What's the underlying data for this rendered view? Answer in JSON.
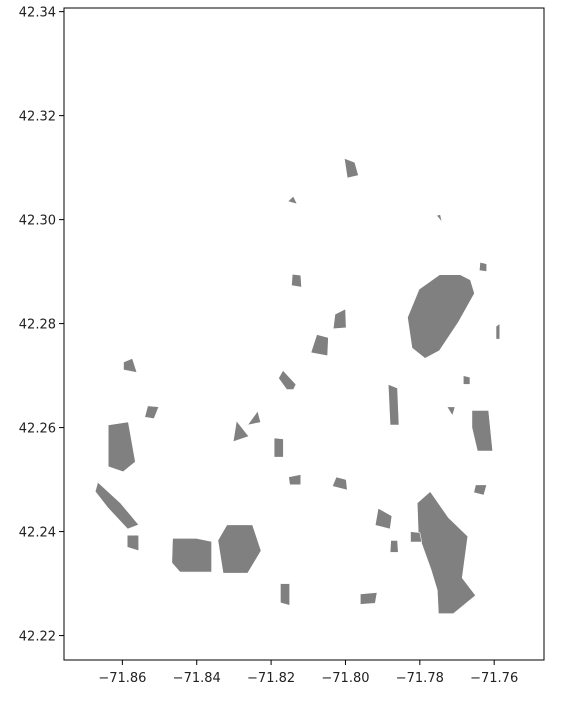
{
  "chart_data": {
    "type": "map",
    "title": "",
    "xlabel": "",
    "ylabel": "",
    "xlim": [
      -71.8757,
      -71.7466
    ],
    "ylim": [
      42.2153,
      42.3407
    ],
    "x_ticks": [
      {
        "value": -71.86,
        "label": "−71.86"
      },
      {
        "value": -71.84,
        "label": "−71.84"
      },
      {
        "value": -71.82,
        "label": "−71.82"
      },
      {
        "value": -71.8,
        "label": "−71.80"
      },
      {
        "value": -71.78,
        "label": "−71.78"
      },
      {
        "value": -71.76,
        "label": "−71.76"
      }
    ],
    "y_ticks": [
      {
        "value": 42.34,
        "label": "42.34"
      },
      {
        "value": 42.32,
        "label": "42.32"
      },
      {
        "value": 42.3,
        "label": "42.30"
      },
      {
        "value": 42.28,
        "label": "42.28"
      },
      {
        "value": 42.26,
        "label": "42.26"
      },
      {
        "value": 42.24,
        "label": "42.24"
      },
      {
        "value": 42.22,
        "label": "42.22"
      }
    ],
    "grid": false,
    "fill_color": "#808080",
    "edge_color": "#ffffff",
    "polygons": [
      [
        [
          -71.7802,
          42.2866
        ],
        [
          -71.7747,
          42.2894
        ],
        [
          -71.7691,
          42.2894
        ],
        [
          -71.7664,
          42.2884
        ],
        [
          -71.7653,
          42.2858
        ],
        [
          -71.7696,
          42.2803
        ],
        [
          -71.7747,
          42.2748
        ],
        [
          -71.7786,
          42.2733
        ],
        [
          -71.7821,
          42.2753
        ],
        [
          -71.7833,
          42.2812
        ]
      ],
      [
        [
          -71.7772,
          42.2477
        ],
        [
          -71.7723,
          42.2427
        ],
        [
          -71.7671,
          42.2391
        ],
        [
          -71.7686,
          42.2311
        ],
        [
          -71.765,
          42.2277
        ],
        [
          -71.771,
          42.2242
        ],
        [
          -71.775,
          42.2242
        ],
        [
          -71.7753,
          42.2287
        ],
        [
          -71.777,
          42.2327
        ],
        [
          -71.7804,
          42.2395
        ],
        [
          -71.7807,
          42.2455
        ]
      ],
      [
        [
          -71.8319,
          42.2413
        ],
        [
          -71.825,
          42.2413
        ],
        [
          -71.8227,
          42.2363
        ],
        [
          -71.8263,
          42.232
        ],
        [
          -71.8329,
          42.232
        ],
        [
          -71.8343,
          42.2383
        ]
      ],
      [
        [
          -71.8465,
          42.2387
        ],
        [
          -71.8401,
          42.2387
        ],
        [
          -71.836,
          42.2381
        ],
        [
          -71.836,
          42.2322
        ],
        [
          -71.8445,
          42.2322
        ],
        [
          -71.8467,
          42.234
        ]
      ],
      [
        [
          -71.8638,
          42.2605
        ],
        [
          -71.8584,
          42.2611
        ],
        [
          -71.8565,
          42.2534
        ],
        [
          -71.8598,
          42.2515
        ],
        [
          -71.8638,
          42.2525
        ]
      ],
      [
        [
          -71.8666,
          42.2495
        ],
        [
          -71.8605,
          42.2455
        ],
        [
          -71.8556,
          42.2413
        ],
        [
          -71.8586,
          42.2405
        ],
        [
          -71.8638,
          42.2445
        ],
        [
          -71.8673,
          42.2477
        ]
      ],
      [
        [
          -71.766,
          42.2633
        ],
        [
          -71.7615,
          42.2633
        ],
        [
          -71.7604,
          42.2555
        ],
        [
          -71.7645,
          42.2555
        ],
        [
          -71.766,
          42.26
        ]
      ],
      [
        [
          -71.8028,
          42.2818
        ],
        [
          -71.8,
          42.2828
        ],
        [
          -71.7998,
          42.2792
        ],
        [
          -71.8033,
          42.279
        ]
      ],
      [
        [
          -71.8077,
          42.2779
        ],
        [
          -71.8046,
          42.2773
        ],
        [
          -71.8048,
          42.2738
        ],
        [
          -71.8093,
          42.2744
        ]
      ],
      [
        [
          -71.7885,
          42.2683
        ],
        [
          -71.786,
          42.2676
        ],
        [
          -71.7856,
          42.2605
        ],
        [
          -71.788,
          42.2605
        ]
      ],
      [
        [
          -71.8587,
          42.2393
        ],
        [
          -71.8556,
          42.2393
        ],
        [
          -71.8556,
          42.2363
        ],
        [
          -71.8587,
          42.237
        ]
      ],
      [
        [
          -71.8597,
          42.2726
        ],
        [
          -71.8573,
          42.2733
        ],
        [
          -71.8561,
          42.2706
        ],
        [
          -71.8597,
          42.2711
        ]
      ],
      [
        [
          -71.8532,
          42.2642
        ],
        [
          -71.8502,
          42.264
        ],
        [
          -71.8515,
          42.2617
        ],
        [
          -71.854,
          42.262
        ]
      ],
      [
        [
          -71.8293,
          42.2613
        ],
        [
          -71.826,
          42.2583
        ],
        [
          -71.8302,
          42.2573
        ]
      ],
      [
        [
          -71.8263,
          42.2605
        ],
        [
          -71.8236,
          42.2632
        ],
        [
          -71.8228,
          42.261
        ]
      ],
      [
        [
          -71.8192,
          42.258
        ],
        [
          -71.8167,
          42.2578
        ],
        [
          -71.8167,
          42.2543
        ],
        [
          -71.8192,
          42.2543
        ]
      ],
      [
        [
          -71.814,
          42.2673
        ],
        [
          -71.8133,
          42.2683
        ],
        [
          -71.8168,
          42.271
        ],
        [
          -71.818,
          42.2695
        ],
        [
          -71.8158,
          42.2673
        ]
      ],
      [
        [
          -71.8025,
          42.2505
        ],
        [
          -71.7998,
          42.25
        ],
        [
          -71.7995,
          42.248
        ],
        [
          -71.8035,
          42.2487
        ]
      ],
      [
        [
          -71.8153,
          42.2505
        ],
        [
          -71.812,
          42.251
        ],
        [
          -71.812,
          42.249
        ],
        [
          -71.815,
          42.249
        ]
      ],
      [
        [
          -71.7912,
          42.2445
        ],
        [
          -71.7875,
          42.243
        ],
        [
          -71.788,
          42.2405
        ],
        [
          -71.792,
          42.2412
        ]
      ],
      [
        [
          -71.7878,
          42.2383
        ],
        [
          -71.786,
          42.2383
        ],
        [
          -71.7858,
          42.236
        ],
        [
          -71.788,
          42.236
        ]
      ],
      [
        [
          -71.7825,
          42.24
        ],
        [
          -71.78,
          42.2398
        ],
        [
          -71.7795,
          42.238
        ],
        [
          -71.7825,
          42.238
        ]
      ],
      [
        [
          -71.8175,
          42.23
        ],
        [
          -71.815,
          42.23
        ],
        [
          -71.815,
          42.2258
        ],
        [
          -71.8175,
          42.2263
        ]
      ],
      [
        [
          -71.796,
          42.228
        ],
        [
          -71.7915,
          42.2283
        ],
        [
          -71.792,
          42.2262
        ],
        [
          -71.796,
          42.226
        ]
      ],
      [
        [
          -71.765,
          42.249
        ],
        [
          -71.762,
          42.249
        ],
        [
          -71.7628,
          42.247
        ],
        [
          -71.7655,
          42.2475
        ]
      ],
      [
        [
          -71.8003,
          42.3118
        ],
        [
          -71.7975,
          42.311
        ],
        [
          -71.7965,
          42.3085
        ],
        [
          -71.7995,
          42.308
        ]
      ],
      [
        [
          -71.8143,
          42.2895
        ],
        [
          -71.812,
          42.2893
        ],
        [
          -71.8118,
          42.287
        ],
        [
          -71.8145,
          42.2873
        ]
      ],
      [
        [
          -71.8155,
          42.3035
        ],
        [
          -71.814,
          42.3045
        ],
        [
          -71.813,
          42.303
        ]
      ],
      [
        [
          -71.7755,
          42.3008
        ],
        [
          -71.7745,
          42.301
        ],
        [
          -71.774,
          42.2995
        ]
      ],
      [
        [
          -71.7638,
          42.2918
        ],
        [
          -71.762,
          42.2915
        ],
        [
          -71.762,
          42.29
        ],
        [
          -71.764,
          42.2902
        ]
      ],
      [
        [
          -71.7595,
          42.2795
        ],
        [
          -71.7585,
          42.28
        ],
        [
          -71.7585,
          42.277
        ],
        [
          -71.7595,
          42.277
        ]
      ],
      [
        [
          -71.7683,
          42.27
        ],
        [
          -71.7665,
          42.2697
        ],
        [
          -71.7665,
          42.2683
        ],
        [
          -71.7683,
          42.2683
        ]
      ],
      [
        [
          -71.7727,
          42.264
        ],
        [
          -71.7705,
          42.264
        ],
        [
          -71.7712,
          42.2623
        ]
      ]
    ]
  },
  "axes": {
    "frame_color": "#000000",
    "background": "#ffffff"
  }
}
